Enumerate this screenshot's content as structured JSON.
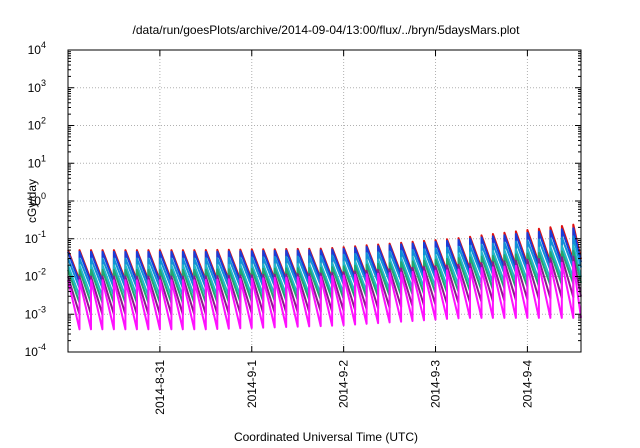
{
  "chart_data": {
    "type": "line",
    "title": "/data/run/goesPlots/archive/2014-09-04/13:00/flux/../bryn/5daysMars.plot",
    "xlabel": "Coordinated Universal Time (UTC)",
    "ylabel": "cGy/day",
    "y_scale": "log",
    "ylim": [
      0.0001,
      10000
    ],
    "xlim": [
      "2014-08-30T00:00",
      "2014-09-04T14:00"
    ],
    "grid": true,
    "x_ticks": [
      {
        "value": "2014-08-31T00:00",
        "label": "2014-8-31"
      },
      {
        "value": "2014-09-01T00:00",
        "label": "2014-9-1"
      },
      {
        "value": "2014-09-02T00:00",
        "label": "2014-9-2"
      },
      {
        "value": "2014-09-03T00:00",
        "label": "2014-9-3"
      },
      {
        "value": "2014-09-04T00:00",
        "label": "2014-9-4"
      }
    ],
    "y_ticks": [
      {
        "value": 0.0001,
        "base": "10",
        "exp": "-4"
      },
      {
        "value": 0.001,
        "base": "10",
        "exp": "-3"
      },
      {
        "value": 0.01,
        "base": "10",
        "exp": "-2"
      },
      {
        "value": 0.1,
        "base": "10",
        "exp": "-1"
      },
      {
        "value": 1,
        "base": "10",
        "exp": "0"
      },
      {
        "value": 10,
        "base": "10",
        "exp": "1"
      },
      {
        "value": 100,
        "base": "10",
        "exp": "2"
      },
      {
        "value": 1000,
        "base": "10",
        "exp": "3"
      },
      {
        "value": 10000,
        "base": "10",
        "exp": "4"
      }
    ],
    "sawtooth_period_hours": 3,
    "series": [
      {
        "color": "#e01010",
        "peak": [
          0.05,
          0.05,
          0.055,
          0.1,
          0.25
        ],
        "trough": [
          0.008,
          0.008,
          0.009,
          0.015,
          0.03
        ]
      },
      {
        "color": "#1a3cd8",
        "peak": [
          0.045,
          0.045,
          0.05,
          0.09,
          0.2
        ],
        "trough": [
          0.007,
          0.007,
          0.008,
          0.013,
          0.025
        ]
      },
      {
        "color": "#1090d8",
        "peak": [
          0.03,
          0.03,
          0.035,
          0.06,
          0.12
        ],
        "trough": [
          0.005,
          0.005,
          0.006,
          0.01,
          0.018
        ]
      },
      {
        "color": "#20b8c8",
        "peak": [
          0.02,
          0.02,
          0.022,
          0.04,
          0.07
        ],
        "trough": [
          0.003,
          0.003,
          0.0035,
          0.006,
          0.01
        ]
      },
      {
        "color": "#20a870",
        "peak": [
          0.015,
          0.015,
          0.017,
          0.03,
          0.05
        ],
        "trough": [
          0.002,
          0.002,
          0.0025,
          0.004,
          0.007
        ]
      },
      {
        "color": "#8b1a8b",
        "peak": [
          0.01,
          0.01,
          0.012,
          0.02,
          0.035
        ],
        "trough": [
          0.001,
          0.001,
          0.0012,
          0.002,
          0.003
        ]
      },
      {
        "color": "#ff10ff",
        "peak": [
          0.008,
          0.008,
          0.01,
          0.015,
          0.025
        ],
        "trough": [
          0.0004,
          0.0004,
          0.0005,
          0.0008,
          0.0008
        ]
      }
    ]
  }
}
